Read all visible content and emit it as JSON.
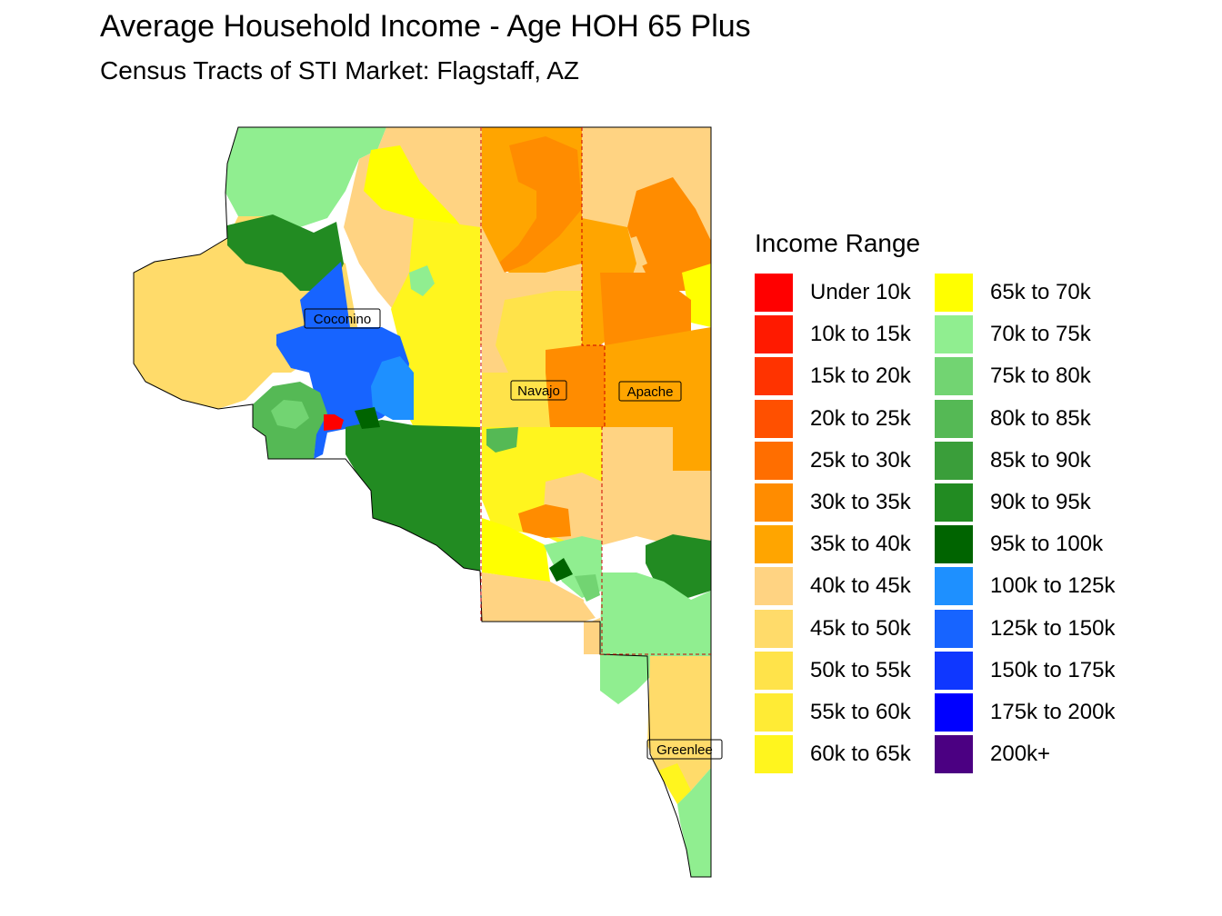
{
  "title": "Average Household Income - Age HOH 65 Plus",
  "subtitle": "Census Tracts of STI Market: Flagstaff, AZ",
  "legend": {
    "title": "Income Range",
    "items": [
      {
        "label": "Under 10k",
        "color": "#FF0000"
      },
      {
        "label": "10k to 15k",
        "color": "#FF1A00"
      },
      {
        "label": "15k to 20k",
        "color": "#FF3300"
      },
      {
        "label": "20k to 25k",
        "color": "#FF5000"
      },
      {
        "label": "25k to 30k",
        "color": "#FF6E00"
      },
      {
        "label": "30k to 35k",
        "color": "#FF8C00"
      },
      {
        "label": "35k to 40k",
        "color": "#FFA500"
      },
      {
        "label": "40k to 45k",
        "color": "#FFD382"
      },
      {
        "label": "45k to 50k",
        "color": "#FFDB6A"
      },
      {
        "label": "50k to 55k",
        "color": "#FFE34A"
      },
      {
        "label": "55k to 60k",
        "color": "#FFEB35"
      },
      {
        "label": "60k to 65k",
        "color": "#FFF51E"
      },
      {
        "label": "65k to 70k",
        "color": "#FFFF00"
      },
      {
        "label": "70k to 75k",
        "color": "#90EE90"
      },
      {
        "label": "75k to 80k",
        "color": "#72D472"
      },
      {
        "label": "80k to 85k",
        "color": "#55B955"
      },
      {
        "label": "85k to 90k",
        "color": "#3A9E3A"
      },
      {
        "label": "90k to 95k",
        "color": "#228B22"
      },
      {
        "label": "95k to 100k",
        "color": "#006400"
      },
      {
        "label": "100k to 125k",
        "color": "#1E90FF"
      },
      {
        "label": "125k to 150k",
        "color": "#1764FF"
      },
      {
        "label": "150k to 175k",
        "color": "#0F37FF"
      },
      {
        "label": "175k to 200k",
        "color": "#0000FF"
      },
      {
        "label": "200k+",
        "color": "#4B0082"
      }
    ]
  },
  "counties": [
    {
      "name": "Coconino"
    },
    {
      "name": "Navajo"
    },
    {
      "name": "Apache"
    },
    {
      "name": "Greenlee"
    }
  ]
}
